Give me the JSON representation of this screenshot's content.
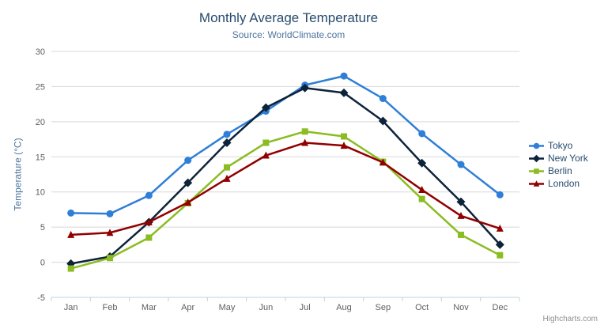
{
  "chart": {
    "title": "Monthly Average Temperature",
    "subtitle": "Source: WorldClimate.com",
    "credits": "Highcharts.com"
  },
  "icons": {
    "export_menu": "hamburger-icon"
  },
  "theme": {
    "title_color": "#274b6d",
    "subtitle_color": "#4d759e",
    "axis_title_color": "#4d759e",
    "axis_label_color": "#606060",
    "grid_color": "#d8d8d8",
    "axis_line_color": "#c0d0e0",
    "legend_text_color": "#274b6d",
    "credits_color": "#909090",
    "export_icon_color": "#666666",
    "background": "#ffffff"
  },
  "chart_data": {
    "type": "line",
    "title": "Monthly Average Temperature",
    "subtitle": "Source: WorldClimate.com",
    "xlabel": "",
    "ylabel": "Temperature (°C)",
    "ylim": [
      -5,
      30
    ],
    "y_tick_interval": 5,
    "y_tick_labels": [
      "-5",
      "0",
      "5",
      "10",
      "15",
      "20",
      "25",
      "30"
    ],
    "grid": "horizontal",
    "legend_position": "right",
    "categories": [
      "Jan",
      "Feb",
      "Mar",
      "Apr",
      "May",
      "Jun",
      "Jul",
      "Aug",
      "Sep",
      "Oct",
      "Nov",
      "Dec"
    ],
    "series": [
      {
        "name": "Tokyo",
        "color": "#2f7ed8",
        "marker": "circle",
        "values": [
          7.0,
          6.9,
          9.5,
          14.5,
          18.2,
          21.5,
          25.2,
          26.5,
          23.3,
          18.3,
          13.9,
          9.6
        ]
      },
      {
        "name": "New York",
        "color": "#0d233a",
        "marker": "diamond",
        "values": [
          -0.2,
          0.8,
          5.7,
          11.3,
          17.0,
          22.0,
          24.8,
          24.1,
          20.1,
          14.1,
          8.6,
          2.5
        ]
      },
      {
        "name": "Berlin",
        "color": "#8bbc21",
        "marker": "square",
        "values": [
          -0.9,
          0.6,
          3.5,
          8.4,
          13.5,
          17.0,
          18.6,
          17.9,
          14.3,
          9.0,
          3.9,
          1.0
        ]
      },
      {
        "name": "London",
        "color": "#910000",
        "marker": "triangle",
        "values": [
          3.9,
          4.2,
          5.7,
          8.5,
          11.9,
          15.2,
          17.0,
          16.6,
          14.2,
          10.3,
          6.6,
          4.8
        ]
      }
    ]
  }
}
